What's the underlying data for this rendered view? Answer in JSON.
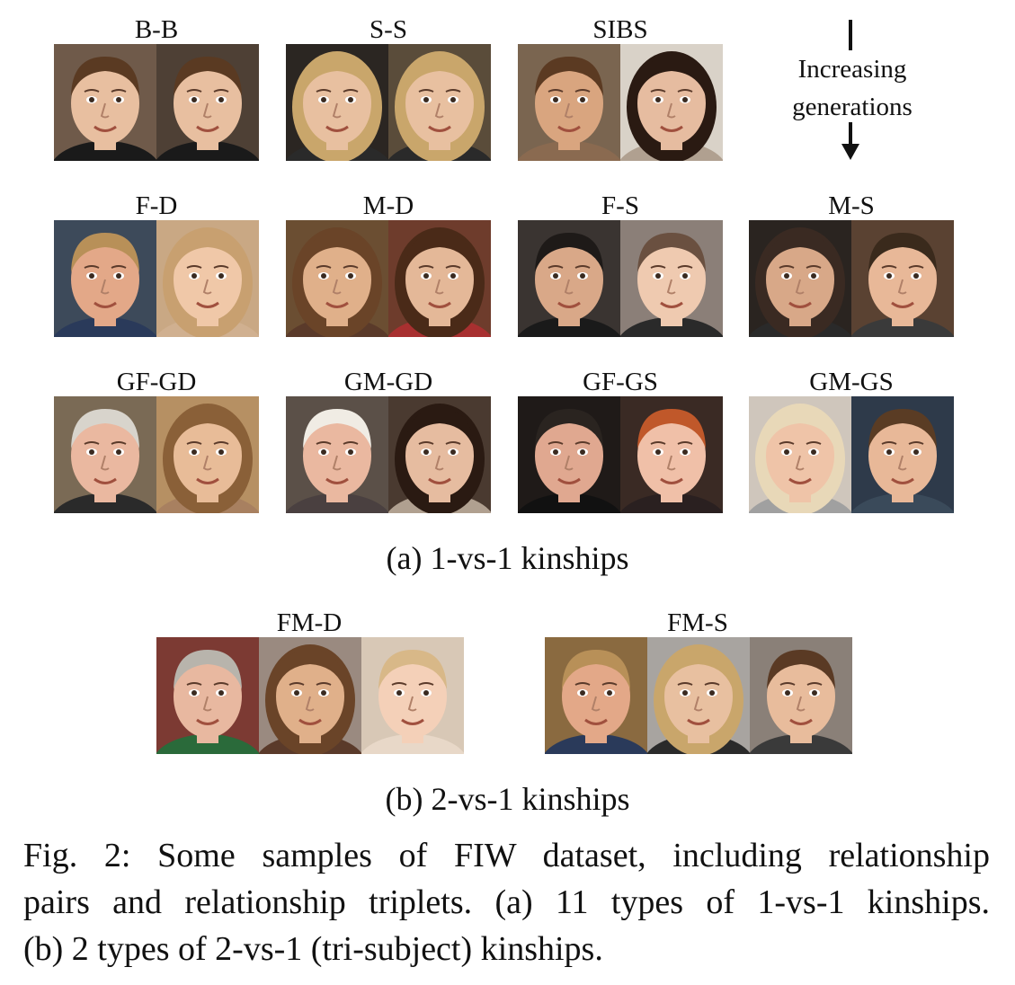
{
  "section_a": {
    "caption": "(a) 1-vs-1 kinships",
    "rows": [
      [
        {
          "label": "B-B",
          "faces": [
            "boy-face",
            "boy-face"
          ]
        },
        {
          "label": "S-S",
          "faces": [
            "woman-face",
            "woman-face"
          ]
        },
        {
          "label": "SIBS",
          "faces": [
            "child-face",
            "girl-face"
          ]
        }
      ],
      [
        {
          "label": "F-D",
          "faces": [
            "man-face",
            "girl-face"
          ]
        },
        {
          "label": "M-D",
          "faces": [
            "woman-face",
            "girl-face"
          ]
        },
        {
          "label": "F-S",
          "faces": [
            "man-face",
            "child-face"
          ]
        },
        {
          "label": "M-S",
          "faces": [
            "woman-face",
            "man-face"
          ]
        }
      ],
      [
        {
          "label": "GF-GD",
          "faces": [
            "elder-man-face",
            "girl-face"
          ]
        },
        {
          "label": "GM-GD",
          "faces": [
            "elder-woman-face",
            "girl-face"
          ]
        },
        {
          "label": "GF-GS",
          "faces": [
            "elder-man-face",
            "boy-face"
          ]
        },
        {
          "label": "GM-GS",
          "faces": [
            "elder-woman-face",
            "boy-face"
          ]
        }
      ]
    ],
    "generations_note": {
      "line1": "Increasing",
      "line2": "generations"
    }
  },
  "section_b": {
    "caption": "(b) 2-vs-1 kinships",
    "triplets": [
      {
        "label": "FM-D",
        "faces": [
          "man-face",
          "woman-face",
          "child-face"
        ]
      },
      {
        "label": "FM-S",
        "faces": [
          "man-face",
          "woman-face",
          "boy-face"
        ]
      }
    ]
  },
  "figure_caption": {
    "line1": "Fig. 2: Some samples of FIW dataset, including relationship",
    "line2": "pairs and relationship triplets. (a) 11 types of 1-vs-1 kinships.",
    "line3": "(b) 2 types of 2-vs-1 (tri-subject) kinships."
  }
}
